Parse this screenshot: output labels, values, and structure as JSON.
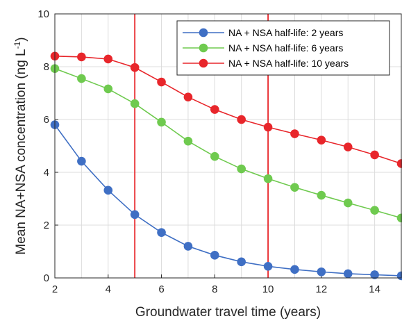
{
  "chart_data": {
    "type": "line",
    "xlabel": "Groundwater travel time (years)",
    "ylabel": "Mean NA+NSA concentration (ng L",
    "ylabel_superscript": "-1",
    "ylabel_close": ")",
    "xlim": [
      2,
      15
    ],
    "ylim": [
      0,
      10
    ],
    "xticks": [
      2,
      4,
      6,
      8,
      10,
      12,
      14
    ],
    "yticks": [
      0,
      2,
      4,
      6,
      8,
      10
    ],
    "grid": true,
    "legend_position": "top-right",
    "reference_lines_x": [
      5,
      10
    ],
    "reference_line_color": "#e8262b",
    "x": [
      2,
      3,
      4,
      5,
      6,
      7,
      8,
      9,
      10,
      11,
      12,
      13,
      14,
      15
    ],
    "series": [
      {
        "name": "NA + NSA half-life: 2 years",
        "color": "#3f6fc4",
        "values": [
          5.8,
          4.42,
          3.32,
          2.4,
          1.72,
          1.2,
          0.86,
          0.61,
          0.44,
          0.32,
          0.23,
          0.16,
          0.12,
          0.08
        ]
      },
      {
        "name": "NA + NSA half-life: 6 years",
        "color": "#6fca4f",
        "values": [
          7.93,
          7.55,
          7.16,
          6.6,
          5.9,
          5.18,
          4.6,
          4.13,
          3.76,
          3.43,
          3.13,
          2.84,
          2.56,
          2.27
        ]
      },
      {
        "name": "NA + NSA half-life: 10 years",
        "color": "#e8262b",
        "values": [
          8.4,
          8.37,
          8.29,
          7.97,
          7.42,
          6.85,
          6.38,
          6.0,
          5.71,
          5.46,
          5.22,
          4.96,
          4.66,
          4.33
        ]
      }
    ]
  }
}
